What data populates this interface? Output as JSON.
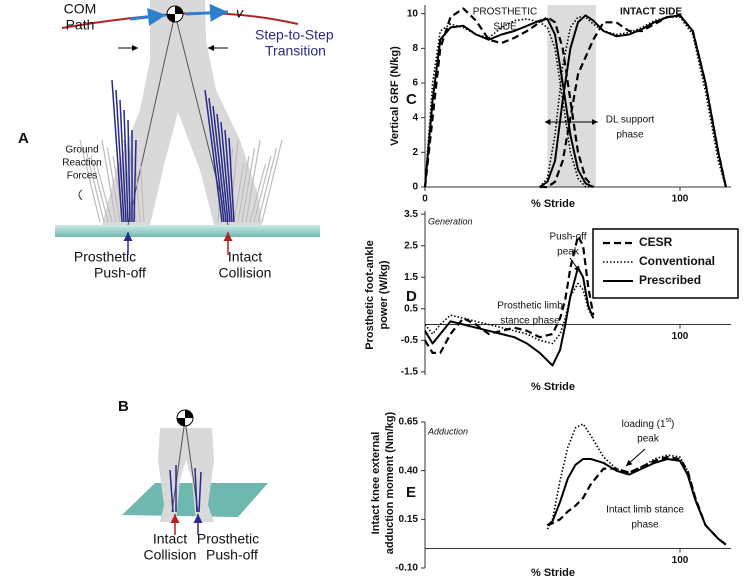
{
  "figure": {
    "panel_a": {
      "letter": "A",
      "com_path": [
        "COM",
        "Path"
      ],
      "velocity": "v",
      "transition": [
        "Step-to-Step",
        "Transition"
      ],
      "grf": [
        "Ground",
        "Reaction",
        "Forces"
      ],
      "pushoff": [
        "Prosthetic",
        "Push-off"
      ],
      "collision": [
        "Intact",
        "Collision"
      ]
    },
    "panel_b": {
      "letter": "B",
      "collision": [
        "Intact",
        "Collision"
      ],
      "pushoff": [
        "Prosthetic",
        "Push-off"
      ]
    }
  },
  "chart_data": [
    {
      "type": "line",
      "panel": "C",
      "ylabel": [
        "Vertical GRF (N/kg)"
      ],
      "xlabel": "% Stride",
      "xlim": [
        0,
        120
      ],
      "ylim": [
        0,
        10.5
      ],
      "xticks": [
        0,
        100
      ],
      "yticks": [
        0,
        2,
        4,
        6,
        8,
        10
      ],
      "highlight_span": [
        48,
        67
      ],
      "annotations": [
        {
          "lines": [
            "PROSTHETIC",
            "SIDE"
          ]
        },
        {
          "lines": [
            "INTACT SIDE"
          ]
        },
        {
          "lines": [
            "DL support",
            "phase"
          ]
        }
      ],
      "series": [
        {
          "style": "solid",
          "color": "#000000",
          "x": [
            0,
            3,
            6,
            10,
            15,
            20,
            25,
            30,
            35,
            40,
            45,
            48,
            51,
            54,
            57,
            60,
            63,
            66
          ],
          "values": [
            0,
            5,
            8.5,
            9.2,
            9.3,
            8.8,
            8.5,
            8.8,
            9.0,
            9.3,
            9.6,
            9.7,
            8.8,
            6,
            3,
            1,
            0.2,
            0
          ]
        },
        {
          "style": "dashed",
          "color": "#000000",
          "x": [
            0,
            3,
            6,
            10,
            15,
            20,
            25,
            30,
            35,
            40,
            45,
            48,
            51,
            54,
            57,
            60,
            63,
            66
          ],
          "values": [
            0,
            4,
            8,
            9.8,
            10.3,
            9.6,
            8.5,
            8.3,
            8.6,
            9.0,
            9.5,
            9.8,
            9.5,
            8,
            5,
            2,
            0.5,
            0
          ]
        },
        {
          "style": "dotted",
          "color": "#000000",
          "x": [
            0,
            3,
            6,
            10,
            15,
            20,
            25,
            30,
            35,
            40,
            45,
            48,
            51,
            54,
            57,
            60,
            63,
            66
          ],
          "values": [
            0,
            6,
            9,
            9.4,
            9.2,
            8.8,
            8.6,
            9.2,
            9.6,
            9.7,
            9.5,
            9.2,
            8,
            5,
            2,
            0.5,
            0,
            0
          ]
        },
        {
          "style": "solid",
          "color": "#000000",
          "x": [
            45,
            48,
            51,
            54,
            57,
            60,
            63,
            66,
            70,
            75,
            80,
            85,
            90,
            95,
            100,
            105,
            110,
            115,
            118
          ],
          "values": [
            0,
            0.3,
            1.5,
            5,
            8,
            9.5,
            9.9,
            9.6,
            9.0,
            8.7,
            8.8,
            9.1,
            9.5,
            9.8,
            9.9,
            9.0,
            6,
            2,
            0
          ]
        },
        {
          "style": "dashed",
          "color": "#000000",
          "x": [
            45,
            48,
            51,
            54,
            57,
            60,
            63,
            66,
            70,
            75,
            80,
            85,
            90,
            95,
            100,
            105,
            110,
            115,
            118
          ],
          "values": [
            0,
            0,
            0.3,
            1.5,
            4,
            6.5,
            7.5,
            8.5,
            9.5,
            9.5,
            9.0,
            9.0,
            9.4,
            9.8,
            9.9,
            9.0,
            6,
            2,
            0
          ]
        },
        {
          "style": "dotted",
          "color": "#000000",
          "x": [
            45,
            48,
            51,
            54,
            57,
            60,
            63,
            66,
            70,
            75,
            80,
            85,
            90,
            95,
            100,
            105,
            110,
            115,
            118
          ],
          "values": [
            0,
            0.5,
            3,
            7,
            9.2,
            9.8,
            9.8,
            9.4,
            9.0,
            8.8,
            8.9,
            9.2,
            9.6,
            9.8,
            9.8,
            8.8,
            5.5,
            1.5,
            0
          ]
        }
      ]
    },
    {
      "type": "line",
      "panel": "D",
      "ylabel": [
        "Prosthetic foot-ankle",
        "power (W/kg)"
      ],
      "xlabel": "% Stride",
      "xlim": [
        0,
        120
      ],
      "ylim": [
        -1.6,
        3.6
      ],
      "xticks": [
        100
      ],
      "yticks": [
        -1.5,
        -0.5,
        0.5,
        1.5,
        2.5,
        3.5
      ],
      "legend": "upper right",
      "annotations": [
        {
          "lines": [
            "Generation"
          ]
        },
        {
          "lines": [
            "Push-off",
            "peak"
          ]
        },
        {
          "lines": [
            "Prosthetic limb",
            "stance phase"
          ]
        }
      ],
      "series": [
        {
          "name": "CESR",
          "style": "dashed",
          "color": "#000000",
          "x": [
            0,
            3,
            6,
            10,
            15,
            20,
            25,
            30,
            35,
            40,
            45,
            50,
            53,
            55,
            57,
            60,
            62,
            64,
            66
          ],
          "values": [
            -0.5,
            -0.9,
            -0.9,
            -0.3,
            0.2,
            0.0,
            -0.3,
            -0.2,
            -0.1,
            -0.2,
            -0.4,
            -0.3,
            0.2,
            0.8,
            1.8,
            2.8,
            2.5,
            1.2,
            0.3
          ]
        },
        {
          "name": "Conventional",
          "style": "dotted",
          "color": "#000000",
          "x": [
            0,
            3,
            6,
            10,
            15,
            20,
            25,
            30,
            35,
            40,
            45,
            50,
            53,
            55,
            57,
            60,
            62,
            64,
            66
          ],
          "values": [
            0.0,
            -0.3,
            0.0,
            0.3,
            0.2,
            0.1,
            0.0,
            -0.1,
            -0.2,
            -0.3,
            -0.5,
            -0.6,
            -0.3,
            0.2,
            0.9,
            1.3,
            1.1,
            0.5,
            0.2
          ]
        },
        {
          "name": "Prescribed",
          "style": "solid",
          "color": "#000000",
          "x": [
            0,
            3,
            6,
            10,
            15,
            20,
            25,
            30,
            35,
            40,
            45,
            50,
            53,
            55,
            57,
            60,
            62,
            64,
            66
          ],
          "values": [
            -0.2,
            -0.6,
            -0.3,
            0.1,
            0.0,
            -0.1,
            -0.2,
            -0.3,
            -0.4,
            -0.6,
            -0.9,
            -1.3,
            -0.8,
            0.0,
            0.9,
            1.8,
            1.5,
            0.6,
            0.2
          ]
        }
      ]
    },
    {
      "type": "line",
      "panel": "E",
      "ylabel": [
        "Intact knee external",
        "adduction moment (Nm/kg)"
      ],
      "xlabel": "% Stride",
      "xlim": [
        0,
        120
      ],
      "ylim": [
        -0.1,
        0.65
      ],
      "xticks": [
        100
      ],
      "yticks": [
        {
          "value": -0.1,
          "label": "-0.10"
        },
        0.15,
        {
          "value": 0.4,
          "label": "0.40"
        },
        0.65
      ],
      "annotations": [
        {
          "lines": [
            "Adduction"
          ]
        },
        {
          "lines": [
            [
              "loading (1",
              "st",
              ")"
            ],
            "peak"
          ]
        },
        {
          "lines": [
            "Intact limb stance",
            "phase"
          ]
        }
      ],
      "series": [
        {
          "style": "solid",
          "color": "#000000",
          "x": [
            48,
            50,
            53,
            56,
            59,
            62,
            65,
            70,
            75,
            80,
            85,
            90,
            95,
            100,
            103,
            106,
            110,
            115,
            118
          ],
          "values": [
            0.12,
            0.14,
            0.24,
            0.36,
            0.43,
            0.46,
            0.46,
            0.44,
            0.4,
            0.38,
            0.41,
            0.44,
            0.46,
            0.45,
            0.38,
            0.25,
            0.12,
            0.05,
            0.02
          ]
        },
        {
          "style": "dashed",
          "color": "#000000",
          "x": [
            48,
            50,
            53,
            56,
            59,
            62,
            65,
            70,
            75,
            80,
            85,
            90,
            95,
            100,
            103,
            106,
            110,
            115,
            118
          ],
          "values": [
            0.12,
            0.13,
            0.15,
            0.19,
            0.22,
            0.26,
            0.33,
            0.41,
            0.41,
            0.39,
            0.42,
            0.45,
            0.47,
            0.46,
            0.4,
            0.26,
            0.12,
            0.05,
            0.02
          ]
        },
        {
          "style": "dotted",
          "color": "#000000",
          "x": [
            48,
            50,
            53,
            56,
            59,
            62,
            65,
            70,
            75,
            80,
            85,
            90,
            95,
            100,
            103,
            106,
            110,
            115,
            118
          ],
          "values": [
            0.1,
            0.15,
            0.35,
            0.52,
            0.62,
            0.64,
            0.58,
            0.47,
            0.41,
            0.39,
            0.42,
            0.46,
            0.48,
            0.47,
            0.4,
            0.26,
            0.12,
            0.05,
            0.02
          ]
        }
      ]
    }
  ]
}
